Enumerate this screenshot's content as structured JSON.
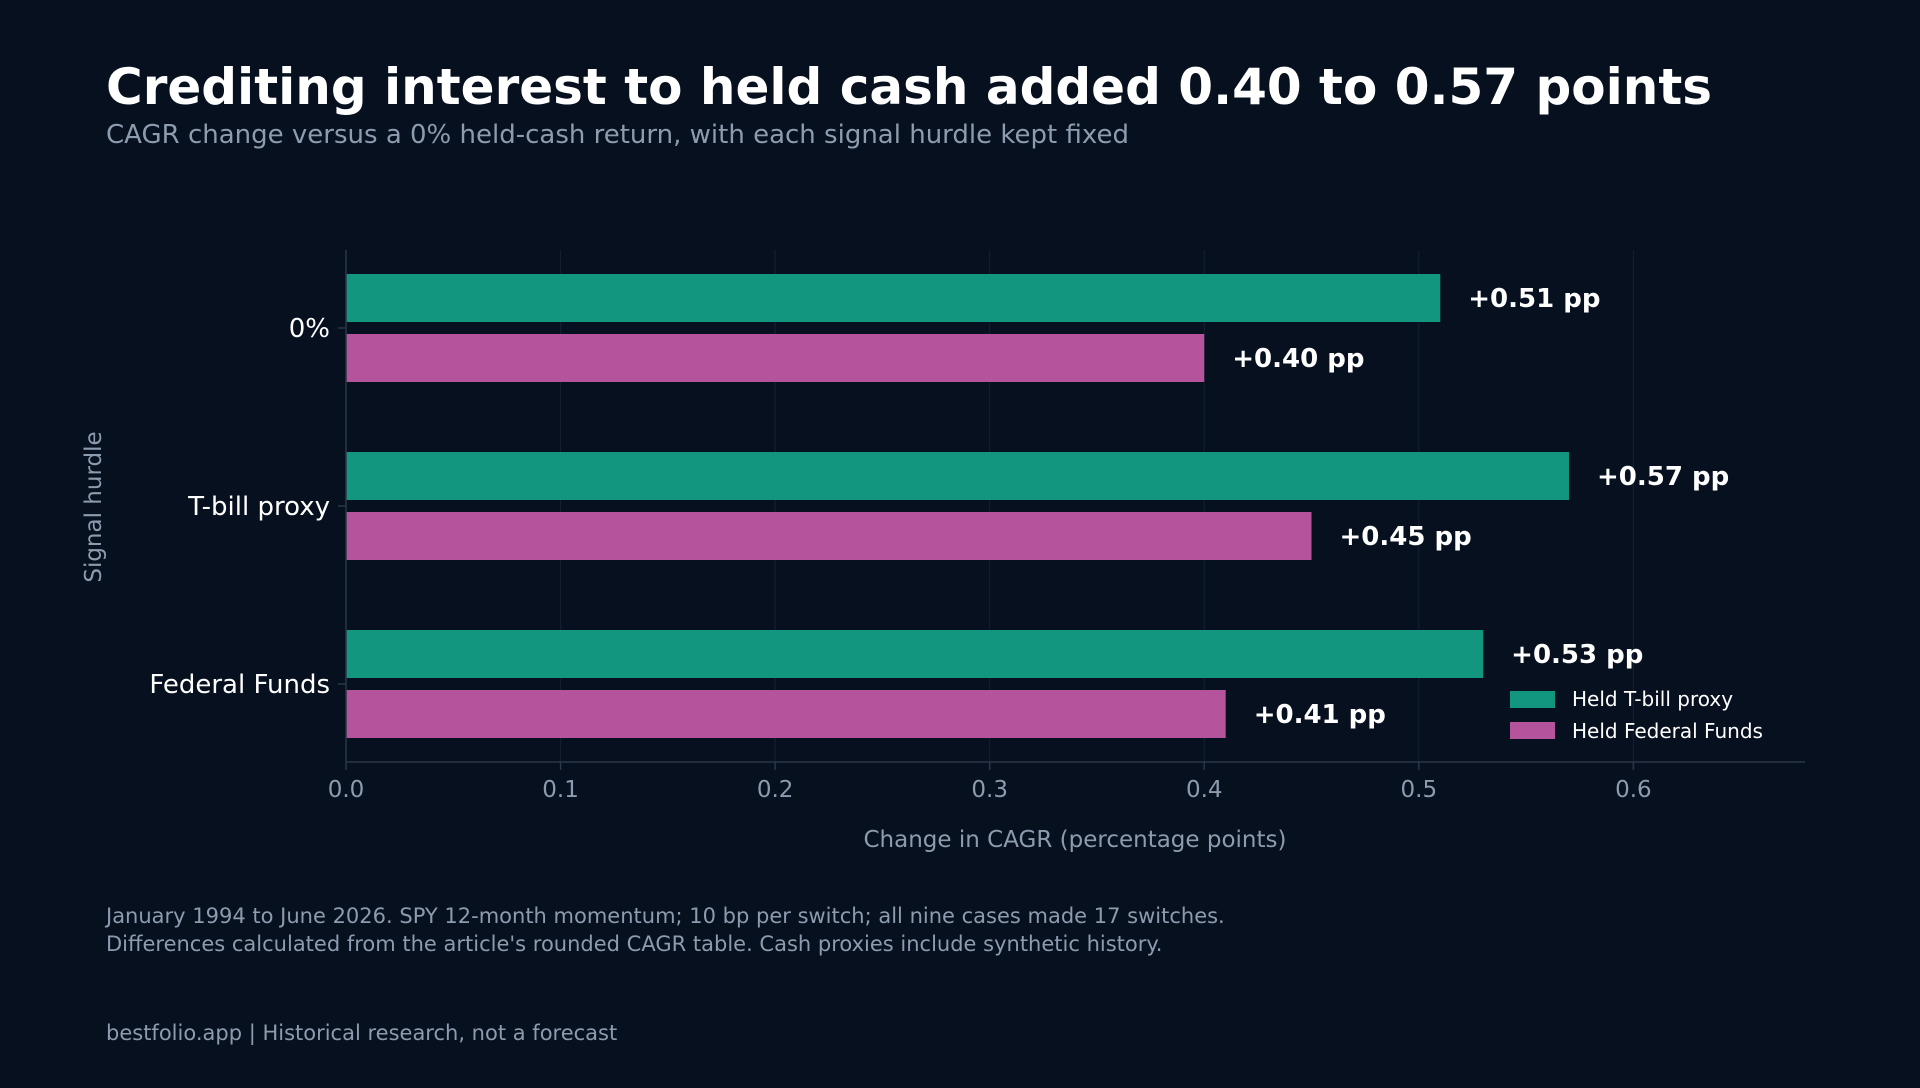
{
  "header": {
    "title": "Crediting interest to held cash added 0.40 to 0.57 points",
    "subtitle": "CAGR change versus a 0% held-cash return, with each signal hurdle kept fixed"
  },
  "chart_data": {
    "type": "bar",
    "orientation": "horizontal",
    "categories": [
      "0%",
      "T-bill proxy",
      "Federal Funds"
    ],
    "series": [
      {
        "name": "Held T-bill proxy",
        "values": [
          0.51,
          0.57,
          0.53
        ],
        "labels": [
          "+0.51 pp",
          "+0.57 pp",
          "+0.53 pp"
        ],
        "color": "#13967f"
      },
      {
        "name": "Held Federal Funds",
        "values": [
          0.4,
          0.45,
          0.41
        ],
        "labels": [
          "+0.40 pp",
          "+0.45 pp",
          "+0.41 pp"
        ],
        "color": "#b5539c"
      }
    ],
    "xlabel": "Change in CAGR (percentage points)",
    "ylabel": "Signal hurdle",
    "xlim": [
      0,
      0.68
    ],
    "xticks": [
      "0.0",
      "0.1",
      "0.2",
      "0.3",
      "0.4",
      "0.5",
      "0.6"
    ],
    "grid": "vertical",
    "legend_position": "bottom-right",
    "colors": {
      "background": "#07101f",
      "grid": "#152033",
      "axis": "#2a3648",
      "tick_text": "#8d9bae",
      "category_text": "#ffffff",
      "label_text": "#ffffff"
    }
  },
  "footer": {
    "note_line1": "January 1994 to June 2026. SPY 12-month momentum; 10 bp per switch; all nine cases made 17 switches.",
    "note_line2": "Differences calculated from the article's rounded CAGR table. Cash proxies include synthetic history.",
    "brand": "bestfolio.app  |  Historical research, not a forecast"
  }
}
